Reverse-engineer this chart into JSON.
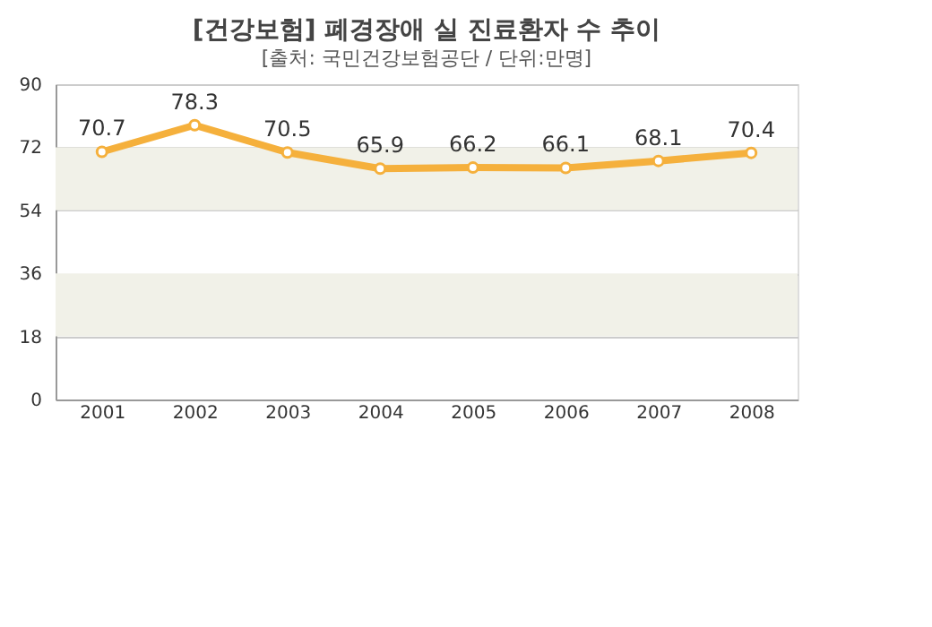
{
  "chart_data": {
    "type": "line",
    "title": "[건강보험] 폐경장애 실 진료환자 수 추이",
    "subtitle": "[출처: 국민건강보험공단 / 단위:만명]",
    "categories": [
      "2001",
      "2002",
      "2003",
      "2004",
      "2005",
      "2006",
      "2007",
      "2008"
    ],
    "series": [
      {
        "color": "#f5b03c",
        "values": [
          70.7,
          78.3,
          70.5,
          65.9,
          66.2,
          66.1,
          68.1,
          70.4
        ]
      }
    ],
    "ylim": [
      0,
      90
    ],
    "yticks": [
      0,
      18,
      36,
      54,
      72,
      90
    ],
    "grid": "y",
    "marker": "circle",
    "line_style": "solid",
    "data_labels": true,
    "bands": [
      {
        "axis": "y",
        "from": 18,
        "to": 36,
        "color": "#f1f1e8"
      },
      {
        "axis": "y",
        "from": 54,
        "to": 72,
        "color": "#f1f1e8"
      }
    ]
  }
}
